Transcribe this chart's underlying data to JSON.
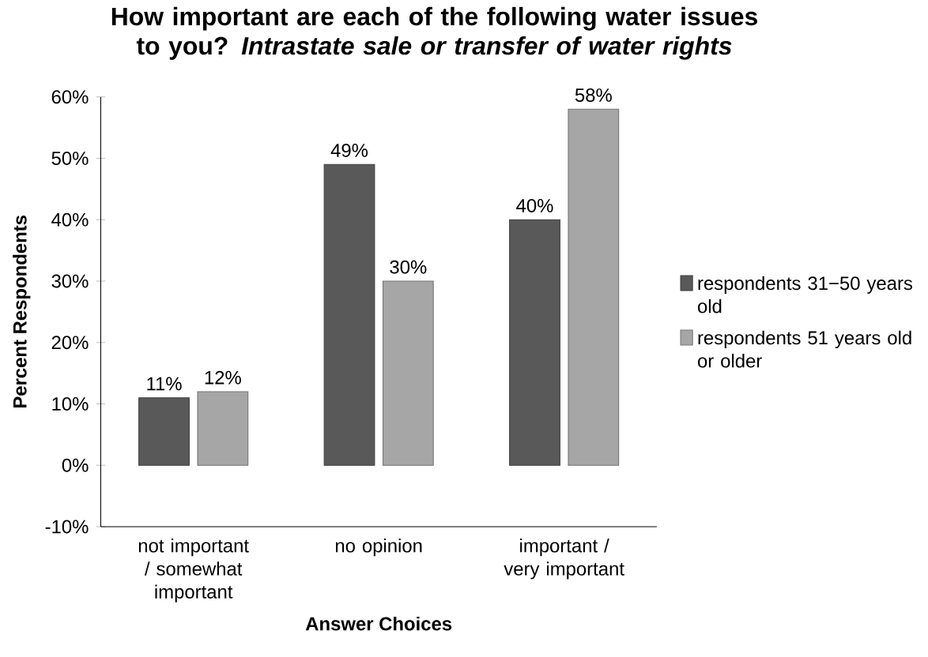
{
  "chart_data": {
    "type": "bar",
    "title": "How important are each of the following water issues to you? *Intrastate sale or transfer of water rights*",
    "xlabel": "Answer Choices",
    "ylabel": "Percent Respondents",
    "categories": [
      "not important / somewhat important",
      "no opinion",
      "important / very important"
    ],
    "series": [
      {
        "name": "respondents 31−50 years old",
        "color": "#595959",
        "values": [
          11,
          49,
          40
        ],
        "value_labels": [
          "11%",
          "49%",
          "40%"
        ]
      },
      {
        "name": "respondents 51 years old or older",
        "color": "#a6a6a6",
        "values": [
          12,
          30,
          58
        ],
        "value_labels": [
          "12%",
          "30%",
          "58%"
        ]
      }
    ],
    "ylim": [
      -10,
      60
    ],
    "yticks": [
      {
        "value": -10,
        "label": "-10%"
      },
      {
        "value": 0,
        "label": "0%"
      },
      {
        "value": 10,
        "label": "10%"
      },
      {
        "value": 20,
        "label": "20%"
      },
      {
        "value": 30,
        "label": "30%"
      },
      {
        "value": 40,
        "label": "40%"
      },
      {
        "value": 50,
        "label": "50%"
      },
      {
        "value": 60,
        "label": "60%"
      }
    ],
    "legend": "right"
  }
}
